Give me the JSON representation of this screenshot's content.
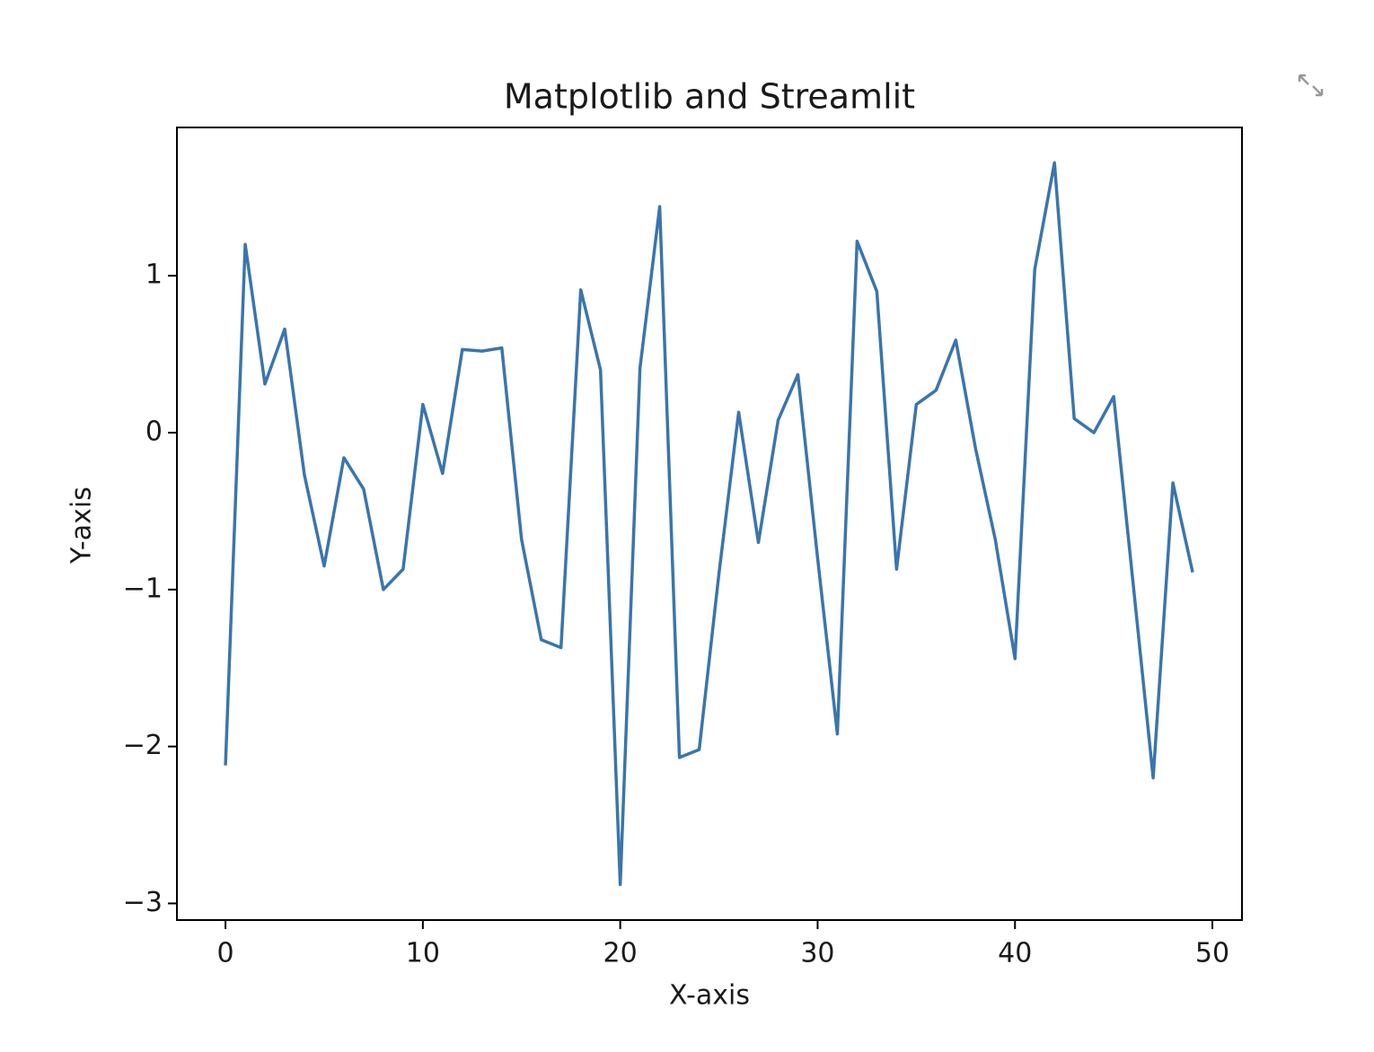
{
  "chart_data": {
    "type": "line",
    "title": "Matplotlib and Streamlit",
    "xlabel": "X-axis",
    "ylabel": "Y-axis",
    "x": [
      0,
      1,
      2,
      3,
      4,
      5,
      6,
      7,
      8,
      9,
      10,
      11,
      12,
      13,
      14,
      15,
      16,
      17,
      18,
      19,
      20,
      21,
      22,
      23,
      24,
      25,
      26,
      27,
      28,
      29,
      30,
      31,
      32,
      33,
      34,
      35,
      36,
      37,
      38,
      39,
      40,
      41,
      42,
      43,
      44,
      45,
      46,
      47,
      48,
      49
    ],
    "series": [
      {
        "color": "#3a75ad",
        "values": [
          -2.12,
          1.2,
          0.31,
          0.66,
          -0.27,
          -0.85,
          -0.16,
          -0.36,
          -1.0,
          -0.87,
          0.18,
          -0.26,
          0.53,
          0.52,
          0.54,
          -0.68,
          -1.32,
          -1.37,
          0.91,
          0.4,
          -2.88,
          0.41,
          1.44,
          -2.07,
          -2.02,
          -0.9,
          0.13,
          -0.7,
          0.08,
          0.37,
          -0.8,
          -1.92,
          1.22,
          0.9,
          -0.87,
          0.18,
          0.27,
          0.59,
          -0.1,
          -0.68,
          -1.44,
          1.04,
          1.72,
          0.09,
          0.0,
          0.23,
          -0.98,
          -2.2,
          -0.32,
          -0.89
        ]
      }
    ],
    "xlim": [
      -2.46,
      51.5
    ],
    "ylim": [
      -3.106,
      1.945
    ],
    "xticks": [
      0,
      10,
      20,
      30,
      40,
      50
    ],
    "yticks": [
      {
        "value": -3,
        "label": "−3"
      },
      {
        "value": -2,
        "label": "−2"
      },
      {
        "value": -1,
        "label": "−1"
      },
      0,
      1
    ]
  }
}
